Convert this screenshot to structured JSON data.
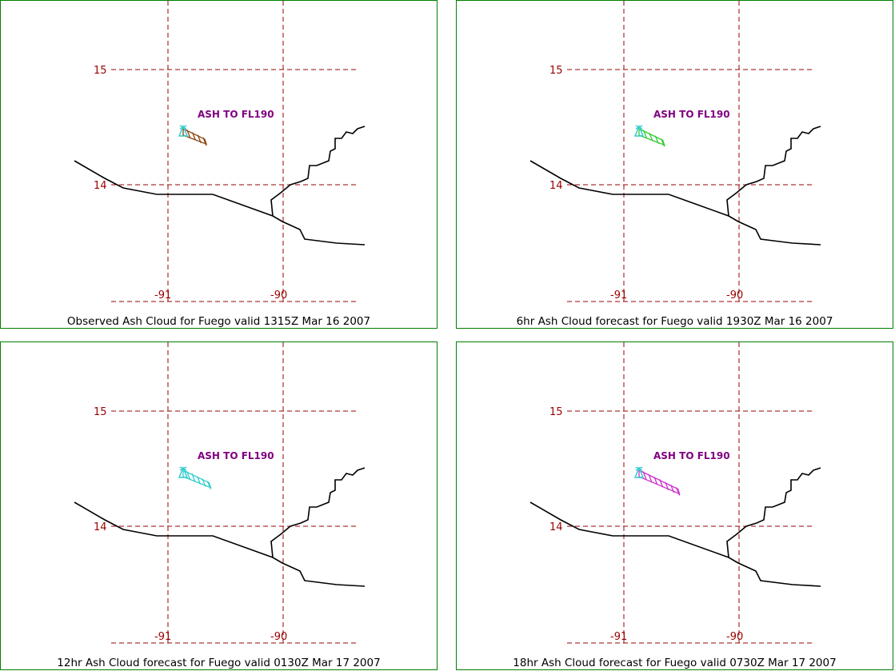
{
  "panels": [
    {
      "caption": "Observed Ash Cloud for Fuego valid 1315Z Mar 16 2007",
      "ash_label": "ASH TO FL190",
      "cloud_color": "#8b4513",
      "cloud_extent": 1.0,
      "lat_labels": [
        "15",
        "14"
      ],
      "lon_labels": [
        "-91",
        "-90"
      ]
    },
    {
      "caption": "6hr Ash Cloud forecast for Fuego valid 1930Z Mar 16 2007",
      "ash_label": "ASH TO FL190",
      "cloud_color": "#33cc33",
      "cloud_extent": 1.1,
      "lat_labels": [
        "15",
        "14"
      ],
      "lon_labels": [
        "-91",
        "-90"
      ]
    },
    {
      "caption": "12hr Ash Cloud forecast for Fuego valid 0130Z Mar 17 2007",
      "ash_label": "ASH TO FL190",
      "cloud_color": "#33cccc",
      "cloud_extent": 1.2,
      "lat_labels": [
        "15",
        "14"
      ],
      "lon_labels": [
        "-91",
        "-90"
      ]
    },
    {
      "caption": "18hr Ash Cloud forecast for Fuego valid 0730Z Mar 17 2007",
      "ash_label": "ASH TO FL190",
      "cloud_color": "#cc33cc",
      "cloud_extent": 1.8,
      "lat_labels": [
        "15",
        "14"
      ],
      "lon_labels": [
        "-91",
        "-90"
      ]
    }
  ],
  "colors": {
    "border": "#008000",
    "grid": "#990000",
    "label": "#800080",
    "coast": "#000000",
    "vent": "#33cccc"
  },
  "icons": {
    "vent": "volcano-vent-icon"
  }
}
